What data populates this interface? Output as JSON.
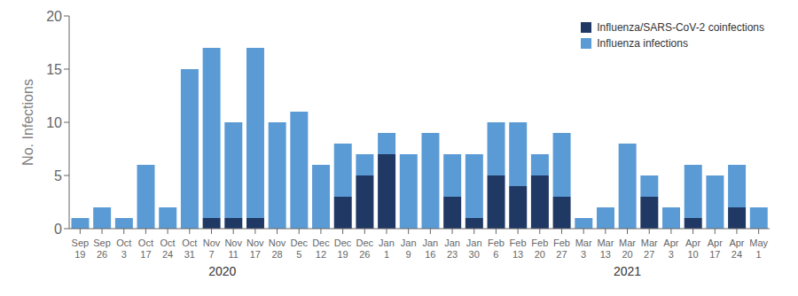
{
  "chart_data": {
    "type": "bar",
    "stacked": true,
    "ylabel": "No. Infections",
    "categories": [
      "Sep\n19",
      "Sep\n26",
      "Oct\n3",
      "Oct\n17",
      "Oct\n24",
      "Oct\n31",
      "Nov\n7",
      "Nov\n11",
      "Nov\n17",
      "Nov\n28",
      "Dec\n5",
      "Dec\n12",
      "Dec\n19",
      "Dec\n26",
      "Jan\n1",
      "Jan\n9",
      "Jan\n16",
      "Jan\n23",
      "Jan\n30",
      "Feb\n6",
      "Feb\n13",
      "Feb\n20",
      "Feb\n27",
      "Mar\n3",
      "Mar\n13",
      "Mar\n20",
      "Mar\n27",
      "Apr\n3",
      "Apr\n10",
      "Apr\n17",
      "Apr\n24",
      "May\n1"
    ],
    "series": [
      {
        "name": "Influenza/SARS-CoV-2 coinfections",
        "color": "#1f3864",
        "values": [
          0,
          0,
          0,
          0,
          0,
          0,
          1,
          1,
          1,
          0,
          0,
          0,
          3,
          5,
          7,
          0,
          0,
          3,
          1,
          5,
          4,
          5,
          3,
          0,
          0,
          0,
          3,
          0,
          1,
          0,
          2,
          0
        ]
      },
      {
        "name": "Influenza infections",
        "color": "#5b9bd5",
        "values": [
          1,
          2,
          1,
          6,
          2,
          15,
          16,
          9,
          16,
          10,
          11,
          6,
          5,
          2,
          2,
          7,
          9,
          4,
          6,
          5,
          6,
          2,
          6,
          1,
          2,
          8,
          2,
          2,
          5,
          5,
          4,
          2
        ]
      }
    ],
    "ylim": [
      0,
      20
    ],
    "yticks": [
      0,
      5,
      10,
      15,
      20
    ],
    "grid": false,
    "legend": "upper right",
    "annotations": [
      {
        "text": "2020",
        "x": 6.5
      },
      {
        "text": "2021",
        "x": 25.0
      }
    ]
  }
}
